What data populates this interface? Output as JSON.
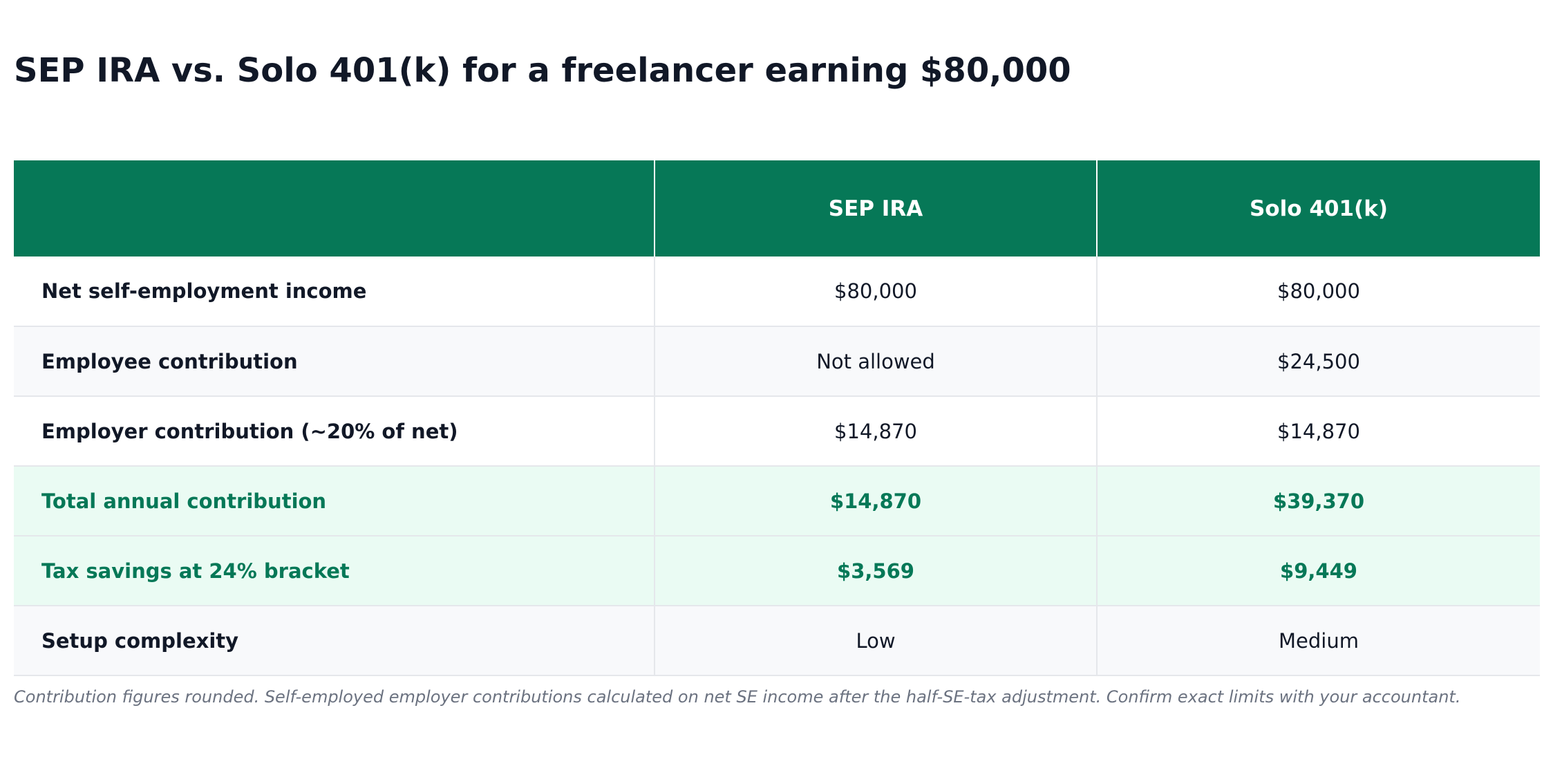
{
  "title": "SEP IRA vs. Solo 401(k) for a freelancer earning $80,000",
  "colors": {
    "header_bg": "#067857",
    "accent_text": "#067857",
    "highlight_row_bg": "#eafbf3",
    "alt_row_bg": "#f8f9fb"
  },
  "table": {
    "headers": [
      "",
      "SEP IRA",
      "Solo 401(k)"
    ],
    "rows": [
      {
        "label": "Net self-employment income",
        "sep_ira": "$80,000",
        "solo_401k": "$80,000",
        "style": "plain"
      },
      {
        "label": "Employee contribution",
        "sep_ira": "Not allowed",
        "solo_401k": "$24,500",
        "style": "alt"
      },
      {
        "label": "Employer contribution (~20% of net)",
        "sep_ira": "$14,870",
        "solo_401k": "$14,870",
        "style": "plain"
      },
      {
        "label": "Total annual contribution",
        "sep_ira": "$14,870",
        "solo_401k": "$39,370",
        "style": "highlight"
      },
      {
        "label": "Tax savings at 24% bracket",
        "sep_ira": "$3,569",
        "solo_401k": "$9,449",
        "style": "highlight"
      },
      {
        "label": "Setup complexity",
        "sep_ira": "Low",
        "solo_401k": "Medium",
        "style": "alt"
      }
    ]
  },
  "footnote": "Contribution figures rounded. Self-employed employer contributions calculated on net SE income after the half-SE-tax adjustment. Confirm exact limits with your accountant."
}
